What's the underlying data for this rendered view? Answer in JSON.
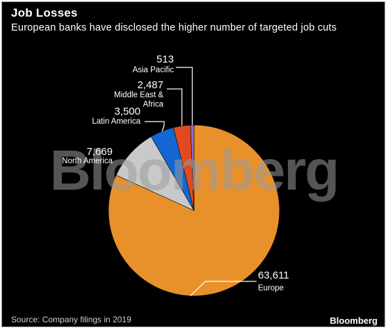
{
  "title": "Job Losses",
  "subtitle": "European banks have disclosed the higher number of targeted job cuts",
  "watermark": "Bloomberg",
  "source": "Source: Company filings in 2019",
  "brand": "Bloomberg",
  "chart_data": {
    "type": "pie",
    "labels": [
      "Europe",
      "North America",
      "Latin America",
      "Middle East & Africa",
      "Asia Pacific"
    ],
    "values": [
      63611,
      7669,
      3500,
      2487,
      513
    ],
    "value_labels": [
      "63,611",
      "7,669",
      "3,500",
      "2,487",
      "513"
    ],
    "colors": [
      "#e8912b",
      "#c9c9c9",
      "#1466d3",
      "#e04a22",
      "#8a6cd6"
    ]
  }
}
